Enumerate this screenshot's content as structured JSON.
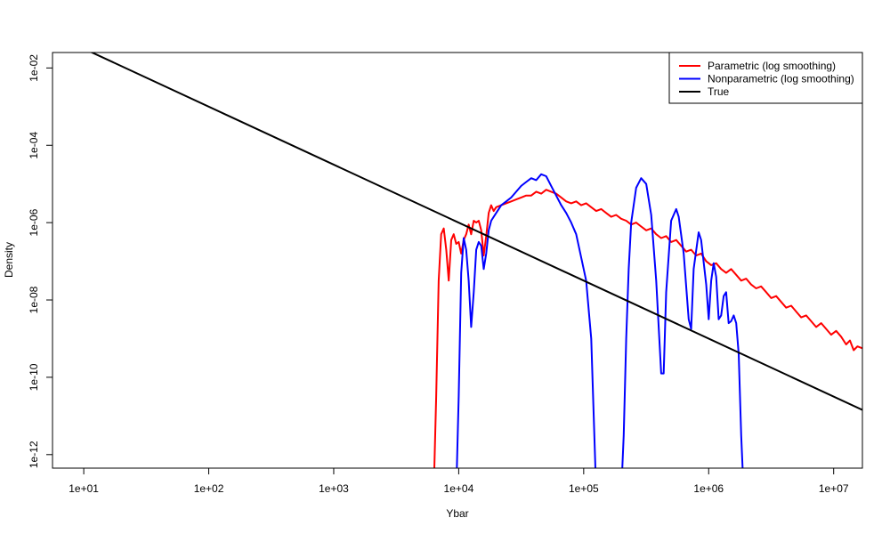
{
  "chart_data": {
    "type": "line",
    "title": "",
    "xlabel": "Ybar",
    "ylabel": "Density",
    "x_scale": "log10",
    "y_scale": "log10",
    "xlim_log10": [
      0.75,
      7.23
    ],
    "ylim_log10": [
      -12.35,
      -1.6
    ],
    "x_ticks": [
      {
        "value_log10": 1,
        "label": "1e+01"
      },
      {
        "value_log10": 2,
        "label": "1e+02"
      },
      {
        "value_log10": 3,
        "label": "1e+03"
      },
      {
        "value_log10": 4,
        "label": "1e+04"
      },
      {
        "value_log10": 5,
        "label": "1e+05"
      },
      {
        "value_log10": 6,
        "label": "1e+06"
      },
      {
        "value_log10": 7,
        "label": "1e+07"
      }
    ],
    "y_ticks": [
      {
        "value_log10": -2,
        "label": "1e-02"
      },
      {
        "value_log10": -4,
        "label": "1e-04"
      },
      {
        "value_log10": -6,
        "label": "1e-06"
      },
      {
        "value_log10": -8,
        "label": "1e-08"
      },
      {
        "value_log10": -10,
        "label": "1e-10"
      },
      {
        "value_log10": -12,
        "label": "1e-12"
      }
    ],
    "grid": false,
    "legend_position": "top-right",
    "series": [
      {
        "name": "Parametric (log smoothing)",
        "color": "#ff0000",
        "points_log10": [
          [
            3.8,
            -13.0
          ],
          [
            3.82,
            -10.5
          ],
          [
            3.84,
            -7.5
          ],
          [
            3.86,
            -6.3
          ],
          [
            3.88,
            -6.15
          ],
          [
            3.9,
            -6.7
          ],
          [
            3.92,
            -7.5
          ],
          [
            3.94,
            -6.45
          ],
          [
            3.96,
            -6.3
          ],
          [
            3.98,
            -6.55
          ],
          [
            4.0,
            -6.5
          ],
          [
            4.02,
            -6.8
          ],
          [
            4.04,
            -6.45
          ],
          [
            4.06,
            -6.3
          ],
          [
            4.08,
            -6.05
          ],
          [
            4.1,
            -6.3
          ],
          [
            4.12,
            -5.95
          ],
          [
            4.14,
            -6.0
          ],
          [
            4.16,
            -5.95
          ],
          [
            4.18,
            -6.2
          ],
          [
            4.2,
            -6.85
          ],
          [
            4.22,
            -6.35
          ],
          [
            4.24,
            -5.75
          ],
          [
            4.26,
            -5.55
          ],
          [
            4.28,
            -5.7
          ],
          [
            4.3,
            -5.6
          ],
          [
            4.34,
            -5.55
          ],
          [
            4.38,
            -5.5
          ],
          [
            4.42,
            -5.45
          ],
          [
            4.46,
            -5.4
          ],
          [
            4.5,
            -5.35
          ],
          [
            4.54,
            -5.3
          ],
          [
            4.58,
            -5.3
          ],
          [
            4.62,
            -5.2
          ],
          [
            4.66,
            -5.25
          ],
          [
            4.7,
            -5.15
          ],
          [
            4.74,
            -5.2
          ],
          [
            4.78,
            -5.25
          ],
          [
            4.82,
            -5.35
          ],
          [
            4.86,
            -5.45
          ],
          [
            4.9,
            -5.5
          ],
          [
            4.94,
            -5.45
          ],
          [
            4.98,
            -5.55
          ],
          [
            5.02,
            -5.5
          ],
          [
            5.06,
            -5.6
          ],
          [
            5.1,
            -5.7
          ],
          [
            5.14,
            -5.65
          ],
          [
            5.18,
            -5.75
          ],
          [
            5.22,
            -5.85
          ],
          [
            5.26,
            -5.8
          ],
          [
            5.3,
            -5.9
          ],
          [
            5.34,
            -5.95
          ],
          [
            5.38,
            -6.05
          ],
          [
            5.42,
            -6.0
          ],
          [
            5.46,
            -6.1
          ],
          [
            5.5,
            -6.2
          ],
          [
            5.54,
            -6.15
          ],
          [
            5.58,
            -6.3
          ],
          [
            5.62,
            -6.4
          ],
          [
            5.66,
            -6.35
          ],
          [
            5.7,
            -6.5
          ],
          [
            5.74,
            -6.45
          ],
          [
            5.78,
            -6.6
          ],
          [
            5.82,
            -6.75
          ],
          [
            5.86,
            -6.7
          ],
          [
            5.9,
            -6.85
          ],
          [
            5.94,
            -6.8
          ],
          [
            5.98,
            -7.0
          ],
          [
            6.02,
            -7.1
          ],
          [
            6.06,
            -7.05
          ],
          [
            6.1,
            -7.2
          ],
          [
            6.14,
            -7.3
          ],
          [
            6.18,
            -7.2
          ],
          [
            6.22,
            -7.35
          ],
          [
            6.26,
            -7.5
          ],
          [
            6.3,
            -7.45
          ],
          [
            6.34,
            -7.6
          ],
          [
            6.38,
            -7.7
          ],
          [
            6.42,
            -7.65
          ],
          [
            6.46,
            -7.8
          ],
          [
            6.5,
            -7.95
          ],
          [
            6.54,
            -7.9
          ],
          [
            6.58,
            -8.05
          ],
          [
            6.62,
            -8.2
          ],
          [
            6.66,
            -8.15
          ],
          [
            6.7,
            -8.3
          ],
          [
            6.74,
            -8.45
          ],
          [
            6.78,
            -8.4
          ],
          [
            6.82,
            -8.55
          ],
          [
            6.86,
            -8.7
          ],
          [
            6.9,
            -8.6
          ],
          [
            6.94,
            -8.75
          ],
          [
            6.98,
            -8.9
          ],
          [
            7.02,
            -8.8
          ],
          [
            7.06,
            -8.95
          ],
          [
            7.1,
            -9.15
          ],
          [
            7.13,
            -9.05
          ],
          [
            7.16,
            -9.3
          ],
          [
            7.19,
            -9.2
          ],
          [
            7.23,
            -9.25
          ]
        ]
      },
      {
        "name": "Nonparametric (log smoothing)",
        "color": "#0000ff",
        "points_log10": [
          [
            3.98,
            -13.0
          ],
          [
            4.0,
            -10.5
          ],
          [
            4.02,
            -7.3
          ],
          [
            4.04,
            -6.4
          ],
          [
            4.06,
            -6.7
          ],
          [
            4.08,
            -7.5
          ],
          [
            4.1,
            -8.7
          ],
          [
            4.12,
            -7.8
          ],
          [
            4.14,
            -6.7
          ],
          [
            4.16,
            -6.5
          ],
          [
            4.18,
            -6.6
          ],
          [
            4.2,
            -7.2
          ],
          [
            4.22,
            -6.8
          ],
          [
            4.24,
            -6.2
          ],
          [
            4.26,
            -5.95
          ],
          [
            4.3,
            -5.75
          ],
          [
            4.34,
            -5.55
          ],
          [
            4.38,
            -5.45
          ],
          [
            4.42,
            -5.35
          ],
          [
            4.46,
            -5.2
          ],
          [
            4.5,
            -5.05
          ],
          [
            4.54,
            -4.95
          ],
          [
            4.58,
            -4.85
          ],
          [
            4.62,
            -4.9
          ],
          [
            4.66,
            -4.75
          ],
          [
            4.7,
            -4.8
          ],
          [
            4.74,
            -5.05
          ],
          [
            4.78,
            -5.3
          ],
          [
            4.82,
            -5.55
          ],
          [
            4.86,
            -5.75
          ],
          [
            4.9,
            -6.0
          ],
          [
            4.94,
            -6.3
          ],
          [
            4.98,
            -6.9
          ],
          [
            5.02,
            -7.5
          ],
          [
            5.06,
            -9.0
          ],
          [
            5.08,
            -11.0
          ],
          [
            5.1,
            -13.0
          ],
          [
            5.3,
            -13.0
          ],
          [
            5.32,
            -11.5
          ],
          [
            5.34,
            -9.0
          ],
          [
            5.36,
            -7.2
          ],
          [
            5.38,
            -6.0
          ],
          [
            5.42,
            -5.1
          ],
          [
            5.46,
            -4.85
          ],
          [
            5.5,
            -5.0
          ],
          [
            5.54,
            -5.8
          ],
          [
            5.58,
            -7.5
          ],
          [
            5.62,
            -9.9
          ],
          [
            5.64,
            -9.9
          ],
          [
            5.66,
            -7.8
          ],
          [
            5.7,
            -5.95
          ],
          [
            5.74,
            -5.65
          ],
          [
            5.76,
            -5.85
          ],
          [
            5.8,
            -6.8
          ],
          [
            5.84,
            -8.5
          ],
          [
            5.86,
            -8.75
          ],
          [
            5.88,
            -7.2
          ],
          [
            5.92,
            -6.25
          ],
          [
            5.94,
            -6.45
          ],
          [
            5.98,
            -7.6
          ],
          [
            6.0,
            -8.5
          ],
          [
            6.02,
            -7.5
          ],
          [
            6.04,
            -7.05
          ],
          [
            6.06,
            -7.4
          ],
          [
            6.08,
            -8.5
          ],
          [
            6.1,
            -8.4
          ],
          [
            6.12,
            -7.9
          ],
          [
            6.14,
            -7.8
          ],
          [
            6.16,
            -8.6
          ],
          [
            6.18,
            -8.55
          ],
          [
            6.2,
            -8.4
          ],
          [
            6.22,
            -8.6
          ],
          [
            6.24,
            -9.4
          ],
          [
            6.26,
            -11.5
          ],
          [
            6.28,
            -13.0
          ]
        ]
      },
      {
        "name": "True",
        "color": "#000000",
        "points_log10": [
          [
            0.75,
            -1.125
          ],
          [
            7.23,
            -10.845
          ]
        ]
      }
    ]
  }
}
